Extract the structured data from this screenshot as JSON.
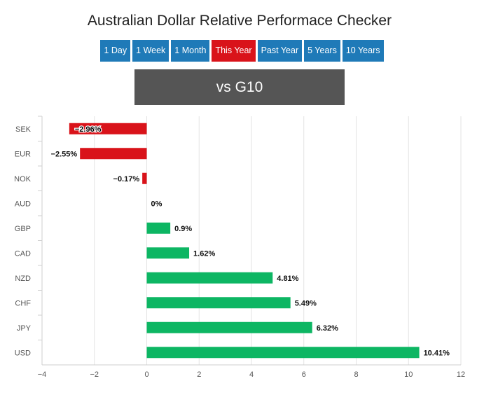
{
  "title": "Australian Dollar Relative Performace Checker",
  "period_buttons": [
    {
      "label": "1 Day",
      "active": false
    },
    {
      "label": "1 Week",
      "active": false
    },
    {
      "label": "1 Month",
      "active": false
    },
    {
      "label": "This Year",
      "active": true
    },
    {
      "label": "Past Year",
      "active": false
    },
    {
      "label": "5 Years",
      "active": false
    },
    {
      "label": "10 Years",
      "active": false
    }
  ],
  "comparison_label": "vs G10",
  "colors": {
    "button": "#1f7ab8",
    "button_active": "#d9131a",
    "positive": "#0db663",
    "negative": "#d9131a",
    "banner": "#555555"
  },
  "chart_data": {
    "type": "bar",
    "orientation": "horizontal",
    "categories": [
      "SEK",
      "EUR",
      "NOK",
      "AUD",
      "GBP",
      "CAD",
      "NZD",
      "CHF",
      "JPY",
      "USD"
    ],
    "values": [
      -2.96,
      -2.55,
      -0.17,
      0,
      0.9,
      1.62,
      4.81,
      5.49,
      6.32,
      10.41
    ],
    "value_labels": [
      "−2.96%",
      "−2.55%",
      "−0.17%",
      "0%",
      "0.9%",
      "1.62%",
      "4.81%",
      "5.49%",
      "6.32%",
      "10.41%"
    ],
    "xlim": [
      -4,
      12
    ],
    "xticks": [
      -4,
      -2,
      0,
      2,
      4,
      6,
      8,
      10,
      12
    ],
    "xtick_labels": [
      "−4",
      "−2",
      "0",
      "2",
      "4",
      "6",
      "8",
      "10",
      "12"
    ],
    "grid": true,
    "legend": "none"
  }
}
